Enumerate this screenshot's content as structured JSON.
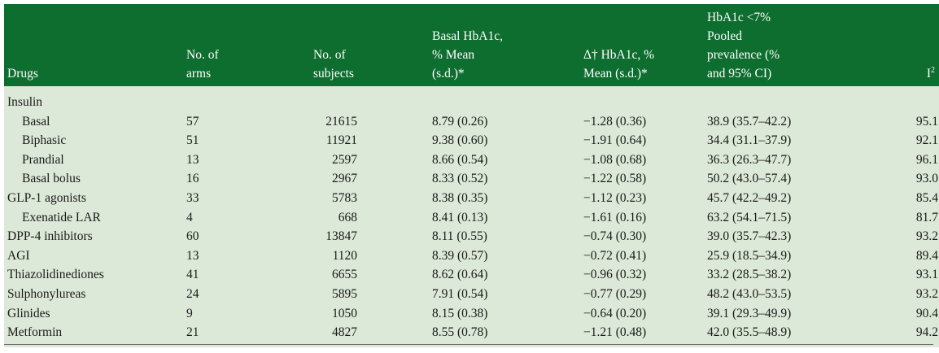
{
  "header": {
    "drugs": "Drugs",
    "arms_line1": "No. of",
    "arms_line2": "arms",
    "subjects_line1": "No. of",
    "subjects_line2": "subjects",
    "basal_line1": "Basal HbA1c,",
    "basal_line2": "% Mean",
    "basal_line3": "(s.d.)*",
    "delta_line1": "Δ† HbA1c, %",
    "delta_line2": "Mean (s.d.)*",
    "prev_line1": "HbA1c <7%",
    "prev_line2": "Pooled",
    "prev_line3": "prevalence (%",
    "prev_line4": "and 95% CI)",
    "i2_base": "I",
    "i2_sup": "2"
  },
  "rows": [
    {
      "drug": "Insulin",
      "indent": false,
      "arms": "",
      "subjects": "",
      "basal": "",
      "delta": "",
      "prev": "",
      "i2": ""
    },
    {
      "drug": "Basal",
      "indent": true,
      "arms": "57",
      "subjects": "21615",
      "basal": "8.79 (0.26)",
      "delta": "−1.28 (0.36)",
      "prev": "38.9 (35.7–42.2)",
      "i2": "95.1"
    },
    {
      "drug": "Biphasic",
      "indent": true,
      "arms": "51",
      "subjects": "11921",
      "basal": "9.38 (0.60)",
      "delta": "−1.91 (0.64)",
      "prev": "34.4 (31.1–37.9)",
      "i2": "92.1"
    },
    {
      "drug": "Prandial",
      "indent": true,
      "arms": "13",
      "subjects": "2597",
      "basal": "8.66 (0.54)",
      "delta": "−1.08 (0.68)",
      "prev": "36.3 (26.3–47.7)",
      "i2": "96.1"
    },
    {
      "drug": "Basal bolus",
      "indent": true,
      "arms": "16",
      "subjects": "2967",
      "basal": "8.33 (0.52)",
      "delta": "−1.22 (0.58)",
      "prev": "50.2 (43.0–57.4)",
      "i2": "93.0"
    },
    {
      "drug": "GLP-1 agonists",
      "indent": false,
      "arms": "33",
      "subjects": "5783",
      "basal": "8.38 (0.35)",
      "delta": "−1.12 (0.23)",
      "prev": "45.7 (42.2–49.2)",
      "i2": "85.4"
    },
    {
      "drug": "Exenatide LAR",
      "indent": true,
      "arms": "4",
      "subjects": "668",
      "basal": "8.41 (0.13)",
      "delta": "−1.61 (0.16)",
      "prev": "63.2 (54.1–71.5)",
      "i2": "81.7"
    },
    {
      "drug": "DPP-4 inhibitors",
      "indent": false,
      "arms": "60",
      "subjects": "13847",
      "basal": "8.11 (0.55)",
      "delta": "−0.74 (0.30)",
      "prev": "39.0 (35.7–42.3)",
      "i2": "93.2"
    },
    {
      "drug": "AGI",
      "indent": false,
      "arms": "13",
      "subjects": "1120",
      "basal": "8.39 (0.57)",
      "delta": "−0.72 (0.41)",
      "prev": "25.9 (18.5–34.9)",
      "i2": "89.4"
    },
    {
      "drug": "Thiazolidinediones",
      "indent": false,
      "arms": "41",
      "subjects": "6655",
      "basal": "8.62 (0.64)",
      "delta": "−0.96 (0.32)",
      "prev": "33.2 (28.5–38.2)",
      "i2": "93.1"
    },
    {
      "drug": "Sulphonylureas",
      "indent": false,
      "arms": "24",
      "subjects": "5895",
      "basal": "7.91 (0.54)",
      "delta": "−0.77 (0.29)",
      "prev": "48.2 (43.0–53.5)",
      "i2": "93.2"
    },
    {
      "drug": "Glinides",
      "indent": false,
      "arms": "9",
      "subjects": "1050",
      "basal": "8.15 (0.38)",
      "delta": "−0.64 (0.20)",
      "prev": "39.1 (29.3–49.9)",
      "i2": "90.4"
    },
    {
      "drug": "Metformin",
      "indent": false,
      "arms": "21",
      "subjects": "4827",
      "basal": "8.55 (0.78)",
      "delta": "−1.21 (0.48)",
      "prev": "42.0 (35.5–48.9)",
      "i2": "94.2"
    }
  ],
  "colors": {
    "header_bg": "#0e6e2f",
    "body_bg": "#dce8d8"
  }
}
